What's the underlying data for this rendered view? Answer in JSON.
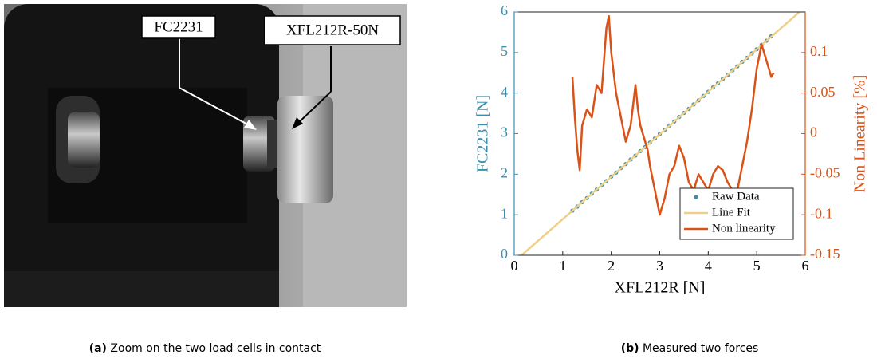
{
  "photo": {
    "callouts": [
      "FC2231",
      "XFL212R-50N"
    ]
  },
  "chart_data": {
    "type": "line",
    "xlabel": "XFL212R [N]",
    "ylabel": "FC2231 [N]",
    "y2label": "Non Linearity [%]",
    "ycolor": "#3a8fb0",
    "y2color": "#d95319",
    "xlim": [
      0,
      6
    ],
    "xticks": [
      0,
      1,
      2,
      3,
      4,
      5,
      6
    ],
    "ylim": [
      0,
      6
    ],
    "yticks": [
      0,
      1,
      2,
      3,
      4,
      5,
      6
    ],
    "y2lim": [
      -0.15,
      0.15
    ],
    "y2ticks": [
      -0.15,
      -0.1,
      -0.05,
      0,
      0.05,
      0.1
    ],
    "legend": "lower right",
    "series": [
      {
        "name": "Raw Data",
        "kind": "scatter",
        "color": "#3f8ea8",
        "x": [
          1.2,
          1.3,
          1.4,
          1.5,
          1.6,
          1.7,
          1.8,
          1.9,
          2.0,
          2.1,
          2.2,
          2.3,
          2.4,
          2.5,
          2.6,
          2.7,
          2.8,
          2.9,
          3.0,
          3.1,
          3.2,
          3.3,
          3.4,
          3.5,
          3.6,
          3.7,
          3.8,
          3.9,
          4.0,
          4.1,
          4.2,
          4.3,
          4.4,
          4.5,
          4.6,
          4.7,
          4.8,
          4.9,
          5.0,
          5.1,
          5.2,
          5.3
        ],
        "values": [
          1.1,
          1.2,
          1.31,
          1.41,
          1.52,
          1.62,
          1.73,
          1.83,
          1.94,
          2.04,
          2.15,
          2.25,
          2.36,
          2.46,
          2.57,
          2.67,
          2.78,
          2.88,
          2.99,
          3.09,
          3.2,
          3.3,
          3.41,
          3.51,
          3.61,
          3.72,
          3.82,
          3.93,
          4.03,
          4.14,
          4.24,
          4.35,
          4.45,
          4.56,
          4.66,
          4.77,
          4.87,
          4.98,
          5.08,
          5.19,
          5.29,
          5.4
        ]
      },
      {
        "name": "Line Fit",
        "kind": "line",
        "color": "#efd08a",
        "x": [
          0.15,
          5.88
        ],
        "values": [
          0,
          6
        ]
      },
      {
        "name": "Non linearity",
        "kind": "line",
        "axis": "y2",
        "color": "#d95319",
        "x": [
          1.2,
          1.25,
          1.3,
          1.35,
          1.4,
          1.5,
          1.6,
          1.7,
          1.8,
          1.9,
          1.95,
          2.0,
          2.1,
          2.2,
          2.3,
          2.4,
          2.5,
          2.55,
          2.6,
          2.7,
          2.75,
          2.8,
          2.9,
          3.0,
          3.1,
          3.2,
          3.3,
          3.4,
          3.5,
          3.6,
          3.7,
          3.8,
          3.9,
          4.0,
          4.1,
          4.2,
          4.3,
          4.4,
          4.5,
          4.6,
          4.7,
          4.8,
          4.9,
          5.0,
          5.1,
          5.2,
          5.3,
          5.35
        ],
        "values": [
          0.07,
          0.02,
          -0.02,
          -0.045,
          0.01,
          0.03,
          0.02,
          0.06,
          0.05,
          0.13,
          0.145,
          0.1,
          0.05,
          0.02,
          -0.01,
          0.01,
          0.06,
          0.03,
          0.01,
          -0.01,
          -0.02,
          -0.04,
          -0.07,
          -0.1,
          -0.08,
          -0.05,
          -0.04,
          -0.015,
          -0.03,
          -0.06,
          -0.07,
          -0.05,
          -0.06,
          -0.07,
          -0.05,
          -0.04,
          -0.045,
          -0.06,
          -0.07,
          -0.07,
          -0.04,
          -0.01,
          0.03,
          0.08,
          0.11,
          0.09,
          0.07,
          0.075
        ]
      }
    ]
  },
  "captions": [
    {
      "label": "(a)",
      "text": "Zoom on the two load cells in contact"
    },
    {
      "label": "(b)",
      "text": "Measured two forces"
    }
  ]
}
